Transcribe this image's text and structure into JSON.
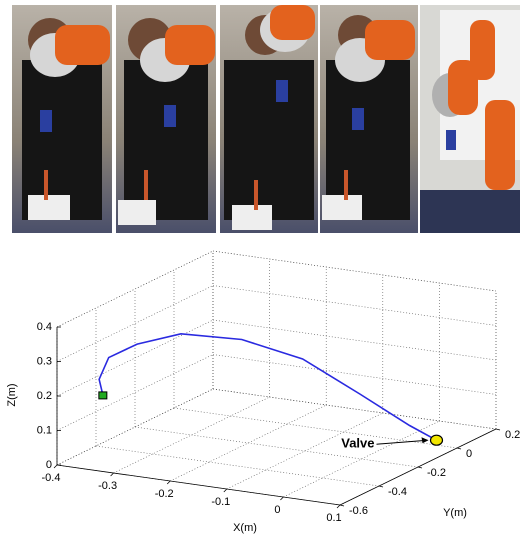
{
  "chart_data": {
    "type": "line3d",
    "x": [
      -0.35,
      -0.36,
      -0.35,
      -0.31,
      -0.25,
      -0.17,
      -0.09,
      -0.02,
      0.03,
      0.05
    ],
    "y": [
      -0.51,
      -0.5,
      -0.48,
      -0.45,
      -0.4,
      -0.32,
      -0.24,
      -0.15,
      -0.04,
      0.04
    ],
    "z": [
      0.19,
      0.23,
      0.29,
      0.33,
      0.36,
      0.34,
      0.28,
      0.17,
      0.06,
      0
    ],
    "color": "#2a2ae0",
    "xlim": [
      -0.4,
      0.1
    ],
    "ylim": [
      -0.6,
      0.2
    ],
    "zlim": [
      0,
      0.4
    ],
    "xticks": [
      -0.4,
      -0.3,
      -0.2,
      -0.1,
      0,
      0.1
    ],
    "yticks": [
      -0.6,
      -0.4,
      -0.2,
      0,
      0.2
    ],
    "zticks": [
      0,
      0.1,
      0.2,
      0.3,
      0.4
    ],
    "xlabel": "X(m)",
    "ylabel": "Y(m)",
    "zlabel": "Z(m)",
    "grid": true,
    "start_marker": {
      "color": "#22aa22"
    },
    "annotation": {
      "text": "Valve",
      "color": "#f2e600"
    }
  }
}
